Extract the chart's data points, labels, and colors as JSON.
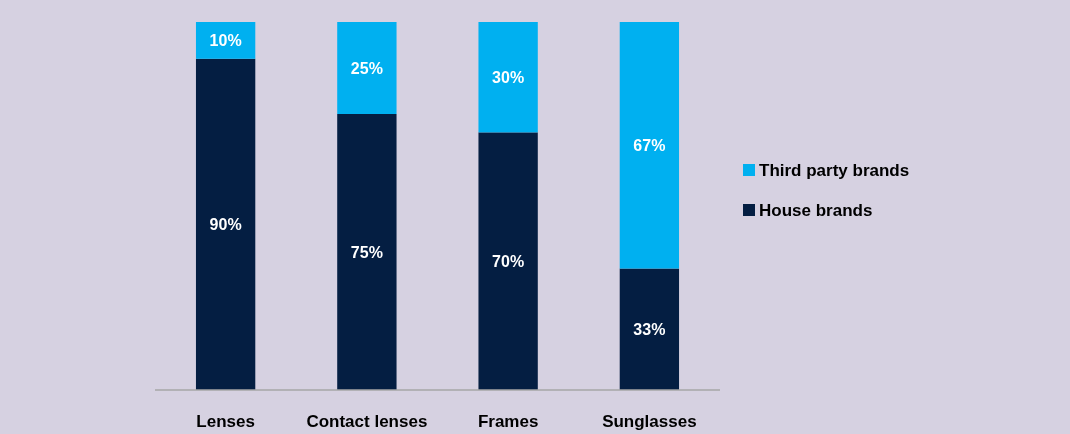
{
  "chart_data": {
    "type": "bar",
    "stacked": true,
    "legend": "right",
    "categories": [
      "Lenses",
      "Contact lenses",
      "Frames",
      "Sunglasses"
    ],
    "series": [
      {
        "name": "House brands",
        "color": "#041e42",
        "values": [
          90,
          75,
          70,
          33
        ],
        "value_labels": [
          "90%",
          "75%",
          "70%",
          "33%"
        ]
      },
      {
        "name": "Third party brands",
        "color": "#00b0f0",
        "values": [
          10,
          25,
          30,
          67
        ],
        "value_labels": [
          "10%",
          "25%",
          "30%",
          "67%"
        ]
      }
    ]
  }
}
